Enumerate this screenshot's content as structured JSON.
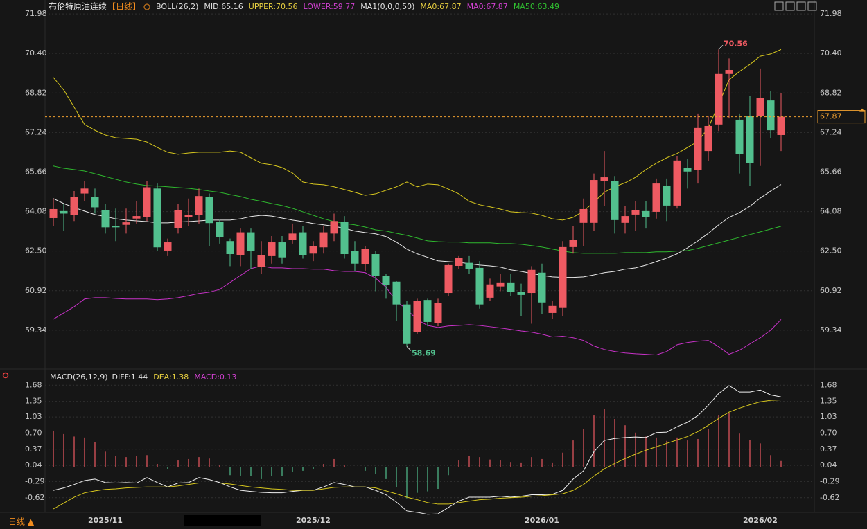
{
  "chart_data": [
    {
      "type": "candlestick",
      "title": "布伦特原油连续",
      "subtitle": "【日线】",
      "header": [
        {
          "text": "BOLL(26,2)",
          "color": "#e0e0e0"
        },
        {
          "text": "MID:65.16",
          "color": "#e0e0e0"
        },
        {
          "text": "UPPER:70.56",
          "color": "#e8d040"
        },
        {
          "text": "LOWER:59.77",
          "color": "#d040d0"
        },
        {
          "text": "MA1(0,0,0,50)",
          "color": "#e0e0e0"
        },
        {
          "text": "MA0:67.87",
          "color": "#e8d040"
        },
        {
          "text": "MA0:67.87",
          "color": "#d040d0"
        },
        {
          "text": "MA50:63.49",
          "color": "#30c030"
        }
      ],
      "categories": [
        null,
        null,
        null,
        null,
        null,
        "2025/11",
        null,
        null,
        null,
        null,
        null,
        null,
        null,
        null,
        null,
        null,
        null,
        null,
        null,
        null,
        null,
        null,
        null,
        null,
        null,
        "2025/12",
        null,
        null,
        null,
        null,
        null,
        null,
        null,
        null,
        null,
        null,
        null,
        null,
        null,
        null,
        null,
        null,
        null,
        null,
        null,
        null,
        null,
        "2026/01",
        null,
        null,
        null,
        null,
        null,
        null,
        null,
        null,
        null,
        null,
        null,
        null,
        null,
        null,
        null,
        null,
        null,
        null,
        null,
        null,
        "2026/02",
        null,
        null
      ],
      "colors": {
        "up": "#ee5a62",
        "down": "#52c08e"
      },
      "ohlc": [
        [
          63.82,
          64.6,
          63.5,
          64.18
        ],
        [
          64.1,
          64.4,
          63.3,
          64.0
        ],
        [
          63.95,
          64.9,
          63.7,
          64.65
        ],
        [
          64.8,
          65.3,
          64.5,
          65.0
        ],
        [
          64.65,
          65.0,
          64.0,
          64.25
        ],
        [
          64.15,
          64.4,
          63.2,
          63.45
        ],
        [
          63.5,
          64.2,
          62.9,
          63.45
        ],
        [
          63.55,
          64.2,
          63.2,
          63.65
        ],
        [
          63.8,
          64.5,
          63.6,
          63.9
        ],
        [
          63.85,
          65.3,
          63.7,
          65.05
        ],
        [
          65.0,
          65.2,
          62.5,
          62.65
        ],
        [
          62.52,
          63.0,
          62.3,
          62.85
        ],
        [
          63.42,
          64.4,
          63.2,
          64.15
        ],
        [
          63.85,
          64.6,
          63.5,
          63.95
        ],
        [
          63.95,
          65.0,
          63.6,
          64.7
        ],
        [
          64.65,
          64.8,
          62.7,
          63.62
        ],
        [
          63.68,
          63.75,
          62.8,
          63.05
        ],
        [
          62.9,
          63.0,
          61.9,
          62.38
        ],
        [
          62.35,
          63.4,
          61.9,
          63.25
        ],
        [
          63.25,
          63.4,
          61.8,
          62.5
        ],
        [
          61.88,
          62.9,
          61.6,
          62.35
        ],
        [
          62.3,
          63.1,
          62.0,
          62.85
        ],
        [
          62.85,
          63.1,
          62.0,
          62.25
        ],
        [
          62.95,
          63.6,
          62.8,
          63.2
        ],
        [
          63.25,
          63.5,
          62.2,
          62.35
        ],
        [
          62.4,
          62.9,
          62.1,
          62.7
        ],
        [
          62.65,
          63.5,
          62.4,
          63.25
        ],
        [
          63.2,
          64.0,
          62.9,
          63.7
        ],
        [
          63.68,
          63.9,
          62.2,
          62.38
        ],
        [
          62.5,
          62.9,
          61.7,
          62.0
        ],
        [
          61.98,
          62.7,
          61.7,
          62.58
        ],
        [
          62.38,
          62.5,
          60.9,
          61.52
        ],
        [
          61.52,
          61.6,
          60.6,
          61.14
        ],
        [
          61.28,
          61.3,
          59.7,
          60.37
        ],
        [
          60.37,
          60.5,
          58.69,
          58.79
        ],
        [
          59.26,
          60.6,
          59.2,
          60.5
        ],
        [
          60.55,
          60.6,
          59.5,
          59.67
        ],
        [
          59.62,
          60.6,
          59.5,
          60.42
        ],
        [
          60.83,
          62.0,
          60.7,
          61.94
        ],
        [
          61.91,
          62.3,
          61.8,
          62.22
        ],
        [
          62.03,
          62.3,
          61.6,
          61.8
        ],
        [
          61.83,
          62.1,
          60.2,
          60.37
        ],
        [
          60.64,
          61.4,
          60.5,
          61.17
        ],
        [
          61.09,
          61.6,
          60.9,
          61.25
        ],
        [
          61.25,
          61.6,
          60.7,
          60.86
        ],
        [
          60.86,
          61.2,
          59.9,
          60.75
        ],
        [
          60.83,
          61.9,
          59.6,
          61.75
        ],
        [
          61.64,
          62.0,
          60.0,
          60.45
        ],
        [
          60.03,
          60.5,
          59.8,
          60.31
        ],
        [
          60.23,
          62.9,
          59.9,
          62.66
        ],
        [
          62.66,
          63.5,
          62.4,
          62.94
        ],
        [
          63.63,
          64.6,
          62.7,
          64.18
        ],
        [
          63.63,
          65.6,
          63.3,
          65.34
        ],
        [
          65.3,
          66.5,
          64.3,
          65.45
        ],
        [
          65.3,
          65.5,
          63.2,
          63.74
        ],
        [
          63.63,
          64.3,
          63.2,
          63.9
        ],
        [
          63.96,
          64.5,
          63.3,
          64.13
        ],
        [
          64.1,
          64.5,
          63.4,
          63.85
        ],
        [
          64.07,
          65.4,
          63.8,
          65.2
        ],
        [
          65.12,
          65.4,
          63.7,
          64.32
        ],
        [
          64.32,
          66.3,
          64.2,
          66.12
        ],
        [
          65.82,
          66.2,
          65.0,
          65.68
        ],
        [
          65.73,
          68.0,
          65.2,
          67.42
        ],
        [
          66.5,
          67.9,
          66.1,
          67.5
        ],
        [
          67.56,
          70.56,
          67.3,
          69.58
        ],
        [
          69.58,
          70.2,
          67.8,
          69.74
        ],
        [
          67.75,
          68.0,
          65.6,
          66.39
        ],
        [
          67.89,
          68.7,
          65.1,
          66.03
        ],
        [
          67.89,
          69.8,
          65.9,
          68.61
        ],
        [
          68.52,
          68.9,
          67.0,
          67.33
        ],
        [
          67.14,
          68.8,
          66.5,
          67.87
        ]
      ],
      "lines": [
        {
          "color": "#d8c81e",
          "values": [
            69.44,
            68.94,
            68.25,
            67.56,
            67.33,
            67.14,
            67.03,
            67.0,
            66.97,
            66.86,
            66.64,
            66.45,
            66.37,
            66.42,
            66.45,
            66.45,
            66.45,
            66.5,
            66.45,
            66.23,
            66.01,
            65.95,
            65.84,
            65.62,
            65.26,
            65.18,
            65.15,
            65.07,
            64.96,
            64.85,
            64.73,
            64.79,
            64.93,
            65.07,
            65.26,
            65.07,
            65.18,
            65.15,
            64.98,
            64.79,
            64.49,
            64.35,
            64.27,
            64.18,
            64.07,
            64.04,
            64.02,
            63.93,
            63.79,
            63.74,
            63.85,
            64.1,
            64.46,
            64.85,
            65.07,
            65.23,
            65.45,
            65.76,
            66.01,
            66.23,
            66.4,
            66.64,
            66.89,
            67.42,
            68.38,
            69.35,
            69.68,
            69.96,
            70.29,
            70.38,
            70.56
          ]
        },
        {
          "color": "#e8e8e8",
          "values": [
            64.6,
            64.4,
            64.24,
            64.1,
            63.96,
            63.88,
            63.79,
            63.74,
            63.71,
            63.68,
            63.63,
            63.63,
            63.66,
            63.68,
            63.71,
            63.74,
            63.74,
            63.74,
            63.79,
            63.88,
            63.93,
            63.9,
            63.82,
            63.74,
            63.68,
            63.6,
            63.55,
            63.49,
            63.41,
            63.3,
            63.24,
            63.19,
            63.08,
            62.86,
            62.58,
            62.39,
            62.25,
            62.11,
            62.08,
            62.05,
            62.0,
            61.94,
            61.91,
            61.86,
            61.75,
            61.69,
            61.61,
            61.53,
            61.47,
            61.45,
            61.45,
            61.47,
            61.55,
            61.64,
            61.69,
            61.78,
            61.83,
            61.94,
            62.08,
            62.22,
            62.39,
            62.63,
            62.91,
            63.21,
            63.55,
            63.85,
            64.04,
            64.29,
            64.62,
            64.9,
            65.16
          ]
        },
        {
          "color": "#c832c8",
          "values": [
            59.78,
            60.03,
            60.28,
            60.59,
            60.64,
            60.64,
            60.61,
            60.59,
            60.59,
            60.59,
            60.56,
            60.59,
            60.64,
            60.72,
            60.81,
            60.86,
            60.97,
            61.25,
            61.53,
            61.8,
            61.91,
            61.83,
            61.83,
            61.8,
            61.8,
            61.78,
            61.78,
            61.72,
            61.69,
            61.69,
            61.64,
            61.42,
            61.06,
            60.5,
            60.17,
            59.76,
            59.53,
            59.45,
            59.51,
            59.53,
            59.56,
            59.53,
            59.48,
            59.43,
            59.37,
            59.31,
            59.26,
            59.18,
            59.07,
            59.1,
            59.04,
            58.93,
            58.71,
            58.57,
            58.49,
            58.43,
            58.4,
            58.38,
            58.35,
            58.49,
            58.76,
            58.85,
            58.9,
            58.93,
            58.68,
            58.38,
            58.54,
            58.79,
            59.04,
            59.34,
            59.77
          ]
        },
        {
          "color": "#2eb82e",
          "values": [
            65.9,
            65.81,
            65.76,
            65.7,
            65.59,
            65.48,
            65.37,
            65.26,
            65.18,
            65.12,
            65.1,
            65.07,
            65.04,
            65.01,
            64.96,
            64.9,
            64.85,
            64.76,
            64.68,
            64.57,
            64.49,
            64.4,
            64.32,
            64.21,
            64.07,
            63.93,
            63.79,
            63.68,
            63.6,
            63.55,
            63.46,
            63.35,
            63.3,
            63.21,
            63.13,
            63.02,
            62.91,
            62.88,
            62.86,
            62.86,
            62.83,
            62.83,
            62.83,
            62.8,
            62.8,
            62.77,
            62.72,
            62.66,
            62.58,
            62.5,
            62.44,
            62.41,
            62.41,
            62.41,
            62.41,
            62.44,
            62.44,
            62.44,
            62.47,
            62.47,
            62.5,
            62.52,
            62.61,
            62.72,
            62.83,
            62.94,
            63.05,
            63.16,
            63.27,
            63.38,
            63.49
          ]
        }
      ],
      "high_label": {
        "value": 70.56,
        "label": "70.56"
      },
      "low_label": {
        "value": 58.69,
        "label": "58.69"
      },
      "last_price": {
        "value": 67.87,
        "label": "67.87"
      },
      "ylim": [
        57.87,
        72.48
      ],
      "yticks": [
        71.98,
        {
          "value": 70.4,
          "label": "70.40"
        },
        68.82,
        67.24,
        65.66,
        64.08,
        {
          "value": 62.5,
          "label": "62.50"
        },
        60.92,
        59.34
      ],
      "grid": true
    },
    {
      "type": "macd",
      "title": "MACD(26,12,9)",
      "header": [
        {
          "text": "DIFF:1.44",
          "color": "#e0e0e0"
        },
        {
          "text": "DEA:1.38",
          "color": "#e8d040"
        },
        {
          "text": "MACD:0.13",
          "color": "#d040d0"
        }
      ],
      "colors": {
        "up": "#ee5a62",
        "down": "#52c08e",
        "diff": "#f0f0f0",
        "dea": "#d8c81e"
      },
      "hist": [
        0.75,
        0.68,
        0.63,
        0.61,
        0.52,
        0.32,
        0.24,
        0.21,
        0.24,
        0.25,
        0.07,
        -0.04,
        0.14,
        0.17,
        0.21,
        0.18,
        0.04,
        -0.16,
        -0.17,
        -0.18,
        -0.24,
        -0.18,
        -0.18,
        -0.1,
        -0.07,
        -0.04,
        0.07,
        0.17,
        0.04,
        0.0,
        -0.07,
        -0.14,
        -0.24,
        -0.4,
        -0.63,
        -0.52,
        -0.49,
        -0.44,
        -0.16,
        0.14,
        0.24,
        0.21,
        0.16,
        0.14,
        0.11,
        0.1,
        0.21,
        0.17,
        0.1,
        0.3,
        0.55,
        0.78,
        1.06,
        1.2,
        0.99,
        0.86,
        0.71,
        0.63,
        0.61,
        0.54,
        0.61,
        0.55,
        0.58,
        0.78,
        1.06,
        1.11,
        0.69,
        0.56,
        0.49,
        0.25,
        0.13
      ],
      "diff": [
        -0.47,
        -0.42,
        -0.35,
        -0.27,
        -0.24,
        -0.31,
        -0.32,
        -0.31,
        -0.32,
        -0.21,
        -0.31,
        -0.4,
        -0.32,
        -0.31,
        -0.21,
        -0.25,
        -0.31,
        -0.4,
        -0.47,
        -0.49,
        -0.51,
        -0.52,
        -0.52,
        -0.49,
        -0.47,
        -0.47,
        -0.4,
        -0.31,
        -0.35,
        -0.4,
        -0.4,
        -0.47,
        -0.56,
        -0.71,
        -0.89,
        -0.92,
        -0.96,
        -0.95,
        -0.82,
        -0.69,
        -0.61,
        -0.61,
        -0.61,
        -0.59,
        -0.61,
        -0.59,
        -0.56,
        -0.56,
        -0.55,
        -0.47,
        -0.24,
        -0.07,
        0.32,
        0.55,
        0.59,
        0.61,
        0.62,
        0.61,
        0.71,
        0.72,
        0.83,
        0.92,
        1.06,
        1.27,
        1.51,
        1.67,
        1.54,
        1.54,
        1.58,
        1.48,
        1.44
      ],
      "dea": [
        -0.85,
        -0.73,
        -0.61,
        -0.52,
        -0.48,
        -0.45,
        -0.44,
        -0.42,
        -0.41,
        -0.4,
        -0.4,
        -0.4,
        -0.38,
        -0.35,
        -0.32,
        -0.32,
        -0.32,
        -0.34,
        -0.37,
        -0.4,
        -0.42,
        -0.44,
        -0.45,
        -0.47,
        -0.47,
        -0.47,
        -0.44,
        -0.41,
        -0.4,
        -0.4,
        -0.4,
        -0.42,
        -0.48,
        -0.54,
        -0.61,
        -0.66,
        -0.72,
        -0.75,
        -0.75,
        -0.72,
        -0.69,
        -0.66,
        -0.65,
        -0.63,
        -0.62,
        -0.61,
        -0.59,
        -0.58,
        -0.56,
        -0.54,
        -0.47,
        -0.35,
        -0.18,
        -0.03,
        0.08,
        0.18,
        0.27,
        0.35,
        0.42,
        0.49,
        0.56,
        0.63,
        0.73,
        0.86,
        1.0,
        1.13,
        1.21,
        1.28,
        1.34,
        1.37,
        1.38
      ],
      "ylim": [
        -0.85,
        1.91
      ],
      "yticks": [
        1.68,
        1.35,
        1.03,
        {
          "value": 0.7,
          "label": "0.70"
        },
        0.37,
        0.04,
        -0.29,
        -0.62
      ],
      "grid": true
    }
  ],
  "period_button": "日线 ▲"
}
